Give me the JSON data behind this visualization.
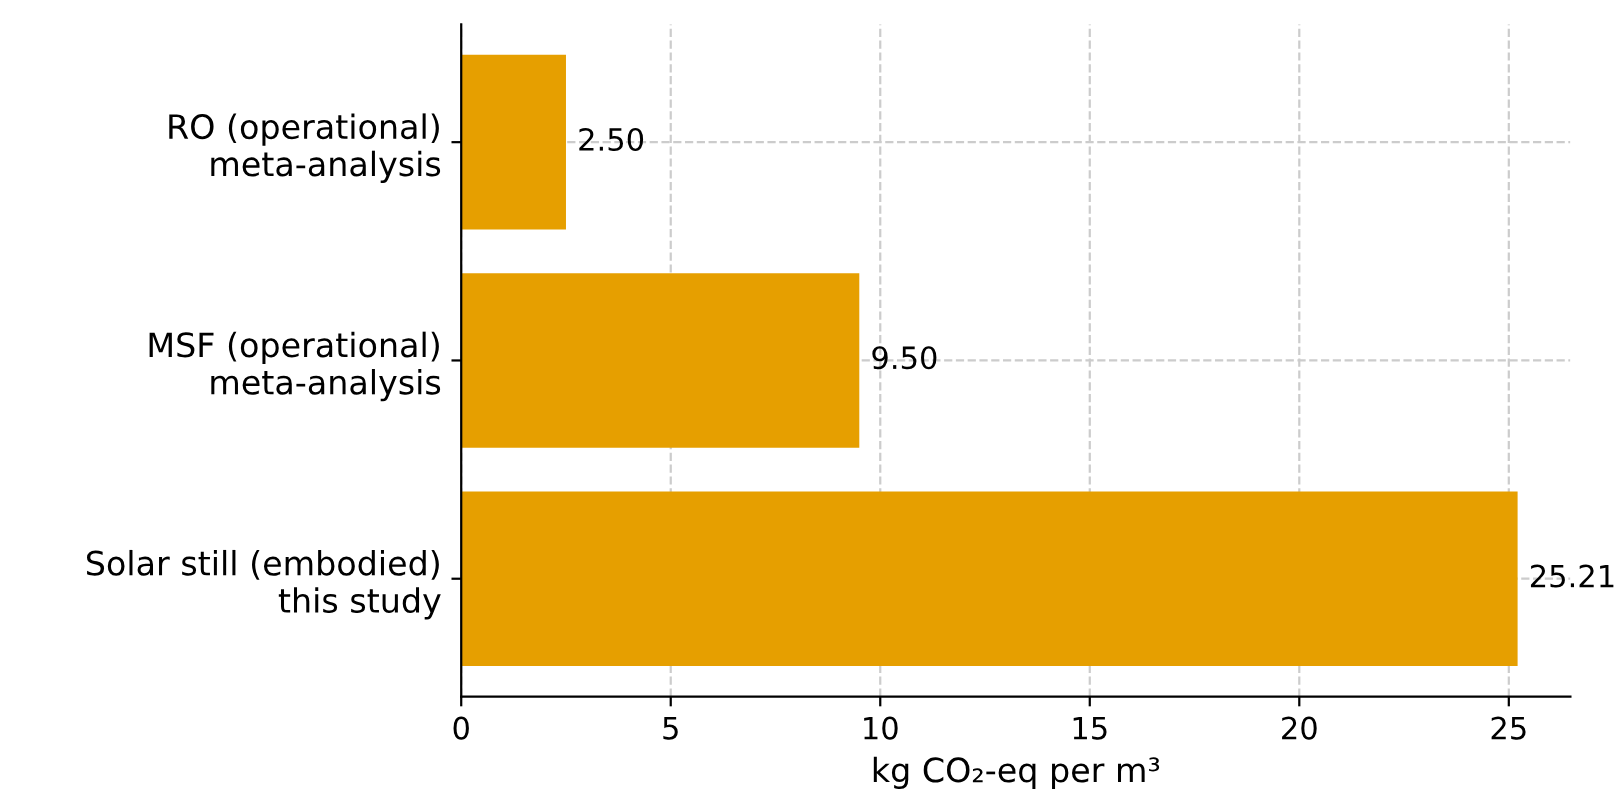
{
  "chart_data": {
    "type": "bar",
    "orientation": "horizontal",
    "categories": [
      "RO (operational)\nmeta-analysis",
      "MSF (operational)\nmeta-analysis",
      "Solar still (embodied)\nthis study"
    ],
    "values": [
      2.5,
      9.5,
      25.21
    ],
    "value_labels": [
      "2.50",
      "9.50",
      "25.21"
    ],
    "color": "#e69f00",
    "xlabel": "kg CO₂-eq per m³",
    "xlim": [
      0,
      26.47
    ],
    "xticks": [
      0,
      5,
      10,
      15,
      20,
      25
    ],
    "grid": true,
    "line_style": "dashed"
  }
}
